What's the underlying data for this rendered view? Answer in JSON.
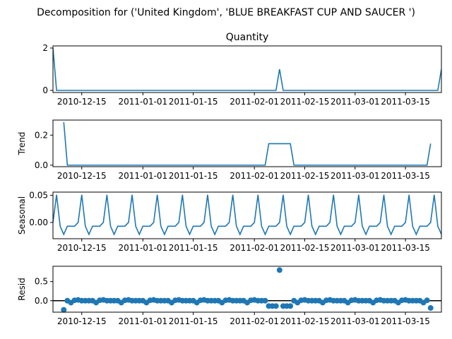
{
  "figure_title": "Decomposition for ('United Kingdom', 'BLUE BREAKFAST CUP AND SAUCER ')",
  "line_color": "#1f77b4",
  "chart_data": [
    {
      "type": "line",
      "title": "Quantity",
      "ylabel": "",
      "xlim": [
        "2010-12-07",
        "2011-03-25"
      ],
      "ylim": [
        -0.1,
        2.1
      ],
      "yticks": [
        0,
        2
      ],
      "xticks": [
        "2010-12-15",
        "2011-01-01",
        "2011-01-15",
        "2011-02-01",
        "2011-02-15",
        "2011-03-01",
        "2011-03-15"
      ],
      "points": [
        [
          "2010-12-07",
          2
        ],
        [
          "2010-12-08",
          0
        ],
        [
          "2011-02-07",
          0
        ],
        [
          "2011-02-08",
          1
        ],
        [
          "2011-02-09",
          0
        ],
        [
          "2011-03-24",
          0
        ],
        [
          "2011-03-25",
          1
        ]
      ]
    },
    {
      "type": "line",
      "title": "",
      "ylabel": "Trend",
      "xlim": [
        "2010-12-07",
        "2011-03-25"
      ],
      "ylim": [
        -0.01,
        0.3
      ],
      "yticks": [
        0.0,
        0.2
      ],
      "ytick_labels": [
        "0.0",
        "0.2"
      ],
      "xticks": [
        "2010-12-15",
        "2011-01-01",
        "2011-01-15",
        "2011-02-01",
        "2011-02-15",
        "2011-03-01",
        "2011-03-15"
      ],
      "points": [
        [
          "2010-12-10",
          0.286
        ],
        [
          "2010-12-11",
          0
        ],
        [
          "2011-02-04",
          0
        ],
        [
          "2011-02-05",
          0.143
        ],
        [
          "2011-02-11",
          0.143
        ],
        [
          "2011-02-12",
          0
        ],
        [
          "2011-03-21",
          0
        ],
        [
          "2011-03-22",
          0.143
        ]
      ]
    },
    {
      "type": "line",
      "title": "",
      "ylabel": "Seasonal",
      "xlim": [
        "2010-12-07",
        "2011-03-25"
      ],
      "ylim": [
        -0.03,
        0.056
      ],
      "yticks": [
        -0.0,
        0.05
      ],
      "ytick_labels": [
        "0.00",
        "0.05"
      ],
      "xticks": [
        "2010-12-15",
        "2011-01-01",
        "2011-01-15",
        "2011-02-01",
        "2011-02-15",
        "2011-03-01",
        "2011-03-15"
      ],
      "start": "2010-12-07",
      "end": "2011-03-25",
      "period_pattern": [
        0.0,
        0.051,
        -0.007,
        -0.022,
        -0.007,
        -0.007,
        -0.007
      ]
    },
    {
      "type": "scatter",
      "title": "",
      "ylabel": "Resid",
      "xlim": [
        "2010-12-07",
        "2011-03-25"
      ],
      "ylim": [
        -0.3,
        0.9
      ],
      "yticks": [
        0.0,
        0.5
      ],
      "ytick_labels": [
        "0.0",
        "0.5"
      ],
      "xticks": [
        "2010-12-15",
        "2011-01-01",
        "2011-01-15",
        "2011-02-01",
        "2011-02-15",
        "2011-03-01",
        "2011-03-15"
      ],
      "hline": 0,
      "start": "2010-12-10",
      "end": "2011-03-22",
      "base_pattern": [
        0.0,
        0.0,
        -0.05,
        0.01,
        0.02,
        0.0,
        0.0
      ],
      "overrides": [
        [
          "2010-12-10",
          -0.24
        ],
        [
          "2011-02-05",
          -0.14
        ],
        [
          "2011-02-06",
          -0.14
        ],
        [
          "2011-02-07",
          -0.14
        ],
        [
          "2011-02-08",
          0.8
        ],
        [
          "2011-02-09",
          -0.14
        ],
        [
          "2011-02-10",
          -0.14
        ],
        [
          "2011-02-11",
          -0.14
        ],
        [
          "2011-03-22",
          -0.19
        ]
      ]
    }
  ]
}
